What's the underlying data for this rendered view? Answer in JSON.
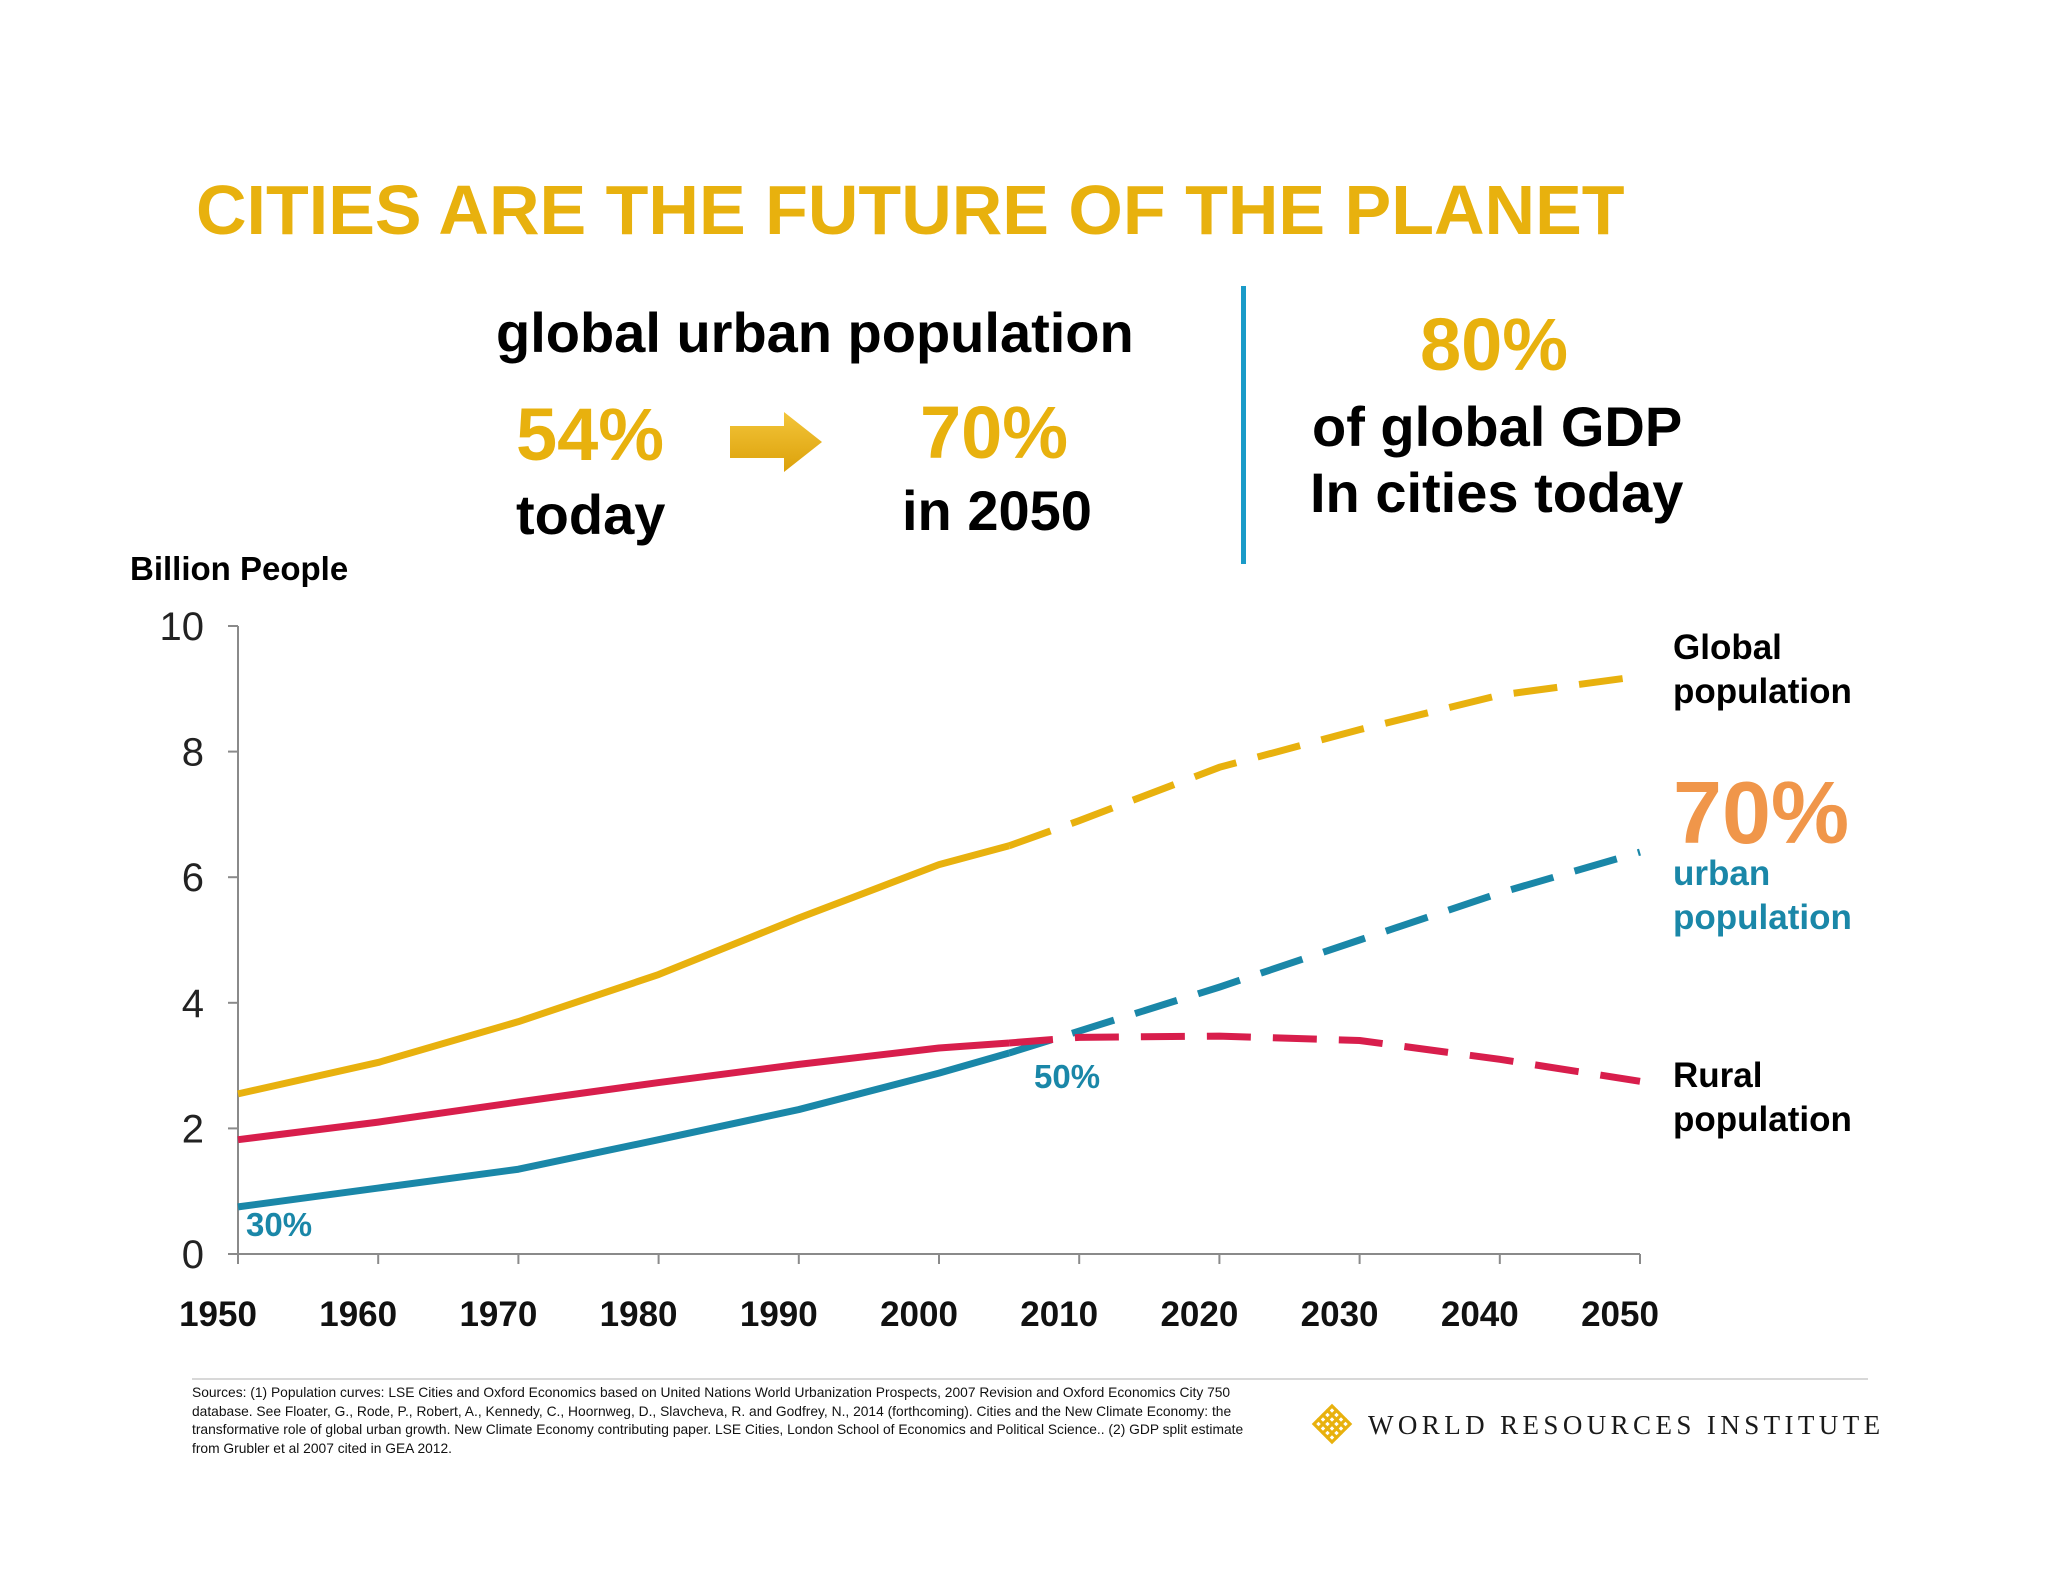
{
  "title": "CITIES ARE THE FUTURE OF THE PLANET",
  "urban_stats": {
    "heading": "global urban population",
    "today_pct": "54%",
    "today_label": "today",
    "future_pct": "70%",
    "future_label": "in 2050"
  },
  "gdp_stat": {
    "pct": "80%",
    "line1": "of global GDP",
    "line2": "In cities today"
  },
  "legend": {
    "global": "Global population",
    "urban_pct": "70%",
    "urban": "urban population",
    "rural": "Rural population"
  },
  "annotations": {
    "start": "30%",
    "crossover": "50%"
  },
  "sources": "Sources: (1) Population curves: LSE Cities and Oxford Economics based on United Nations World Urbanization Prospects, 2007 Revision and Oxford Economics City 750 database. See Floater, G., Rode, P., Robert, A., Kennedy, C., Hoornweg, D., Slavcheva, R. and Godfrey, N., 2014 (forthcoming). Cities and the New Climate Economy: the transformative role of global urban growth. New Climate Economy contributing paper. LSE Cities, London School of Economics and Political Science.. (2) GDP split estimate from Grubler et al 2007 cited in GEA 2012.",
  "logo_text": "WORLD RESOURCES INSTITUTE",
  "colors": {
    "gold": "#e8b10e",
    "teal": "#1a87a8",
    "red": "#d81e4c",
    "orange": "#f0964a",
    "divider": "#1a9bc8"
  },
  "chart_data": {
    "type": "line",
    "title": "",
    "xlabel": "",
    "ylabel": "Billion People",
    "xlim": [
      1950,
      2050
    ],
    "ylim": [
      0,
      10
    ],
    "x_ticks": [
      "1950",
      "1960",
      "1970",
      "1980",
      "1990",
      "2000",
      "2010",
      "2020",
      "2030",
      "2040",
      "2050"
    ],
    "y_ticks": [
      "0",
      "2",
      "4",
      "6",
      "8",
      "10"
    ],
    "projection_start": 2005,
    "series": [
      {
        "name": "Global population",
        "color": "#e8b10e",
        "x": [
          1950,
          1960,
          1970,
          1980,
          1990,
          2000,
          2005,
          2010,
          2020,
          2030,
          2040,
          2045,
          2050
        ],
        "y": [
          2.55,
          3.05,
          3.7,
          4.45,
          5.35,
          6.2,
          6.5,
          6.9,
          7.75,
          8.35,
          8.9,
          9.05,
          9.2
        ]
      },
      {
        "name": "urban population",
        "color": "#1a87a8",
        "x": [
          1950,
          1960,
          1970,
          1980,
          1990,
          2000,
          2005,
          2010,
          2020,
          2030,
          2040,
          2050
        ],
        "y": [
          0.75,
          1.05,
          1.35,
          1.82,
          2.3,
          2.88,
          3.2,
          3.55,
          4.25,
          5.0,
          5.75,
          6.4
        ]
      },
      {
        "name": "Rural population",
        "color": "#d81e4c",
        "x": [
          1950,
          1960,
          1970,
          1980,
          1990,
          2000,
          2005,
          2010,
          2020,
          2030,
          2040,
          2050
        ],
        "y": [
          1.82,
          2.1,
          2.42,
          2.73,
          3.02,
          3.28,
          3.36,
          3.45,
          3.47,
          3.4,
          3.1,
          2.75
        ]
      }
    ]
  }
}
